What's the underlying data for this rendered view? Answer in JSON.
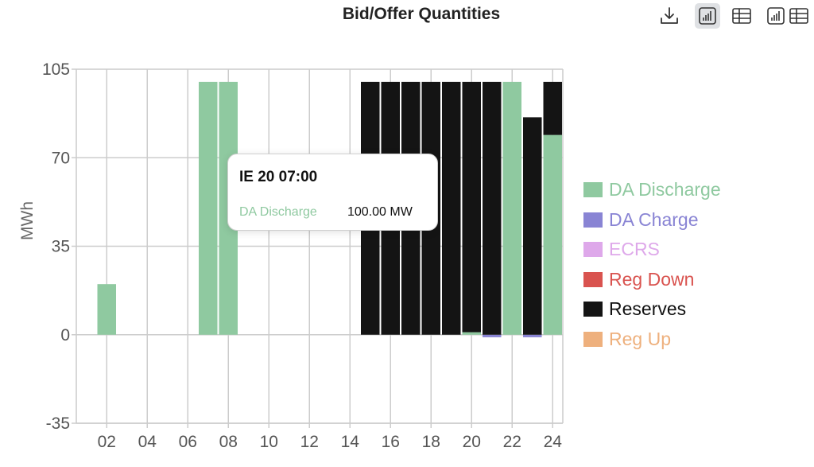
{
  "header": {
    "title": "Bid/Offer Quantities"
  },
  "toolbar": {
    "buttons": [
      {
        "name": "download-icon"
      },
      {
        "name": "bar-chart-view-icon",
        "active": true
      },
      {
        "name": "table-view-icon"
      },
      {
        "name": "chart-and-table-view-icon"
      }
    ]
  },
  "colors": {
    "da_discharge": "#8fc9a0",
    "da_charge": "#8984d4",
    "ecrs": "#dea8ea",
    "reg_down": "#d9534f",
    "reserves": "#141414",
    "reg_up": "#eeb07d",
    "grid": "#cccccc"
  },
  "tooltip": {
    "title": "IE 20 07:00",
    "series": "DA Discharge",
    "value": "100.00 MW"
  },
  "chart_data": {
    "type": "bar",
    "stacked": true,
    "ylabel": "MWh",
    "xlabel": "",
    "ylim": [
      -35,
      105
    ],
    "yticks": [
      "105",
      "70",
      "35",
      "0",
      "-35"
    ],
    "xticks": [
      "02",
      "04",
      "06",
      "08",
      "10",
      "12",
      "14",
      "16",
      "18",
      "20",
      "22",
      "24"
    ],
    "grid": true,
    "legend_position": "right",
    "categories": [
      "01",
      "02",
      "03",
      "04",
      "05",
      "06",
      "07",
      "08",
      "09",
      "10",
      "11",
      "12",
      "13",
      "14",
      "15",
      "16",
      "17",
      "18",
      "19",
      "20",
      "21",
      "22",
      "23",
      "24"
    ],
    "series": [
      {
        "name": "DA Discharge",
        "color": "#8fc9a0",
        "values": [
          0,
          20,
          0,
          0,
          0,
          0,
          100,
          100,
          0,
          0,
          0,
          0,
          0,
          0,
          0,
          0,
          0,
          0,
          0,
          1,
          0,
          100,
          0,
          79
        ]
      },
      {
        "name": "DA Charge",
        "color": "#8984d4",
        "values": [
          0,
          0,
          0,
          0,
          0,
          0,
          0,
          0,
          0,
          0,
          0,
          0,
          0,
          0,
          0,
          0,
          0,
          0,
          0,
          0,
          -1,
          0,
          -1,
          0
        ]
      },
      {
        "name": "ECRS",
        "color": "#dea8ea",
        "values": [
          0,
          0,
          0,
          0,
          0,
          0,
          0,
          0,
          0,
          0,
          0,
          0,
          0,
          0,
          0,
          0,
          0,
          0,
          0,
          0,
          0,
          0,
          0,
          0
        ]
      },
      {
        "name": "Reg Down",
        "color": "#d9534f",
        "values": [
          0,
          0,
          0,
          0,
          0,
          0,
          0,
          0,
          0,
          0,
          0,
          0,
          0,
          0,
          0,
          0,
          0,
          0,
          0,
          0,
          0,
          0,
          0,
          0
        ]
      },
      {
        "name": "Reserves",
        "color": "#141414",
        "values": [
          0,
          0,
          0,
          0,
          0,
          0,
          0,
          0,
          0,
          0,
          0,
          0,
          0,
          0,
          100,
          100,
          100,
          100,
          100,
          99,
          100,
          0,
          86,
          21
        ]
      },
      {
        "name": "Reg Up",
        "color": "#eeb07d",
        "values": [
          0,
          0,
          0,
          0,
          0,
          0,
          0,
          0,
          0,
          0,
          0,
          0,
          0,
          0,
          0,
          0,
          0,
          0,
          0,
          0,
          0,
          0,
          0,
          0
        ]
      }
    ]
  }
}
